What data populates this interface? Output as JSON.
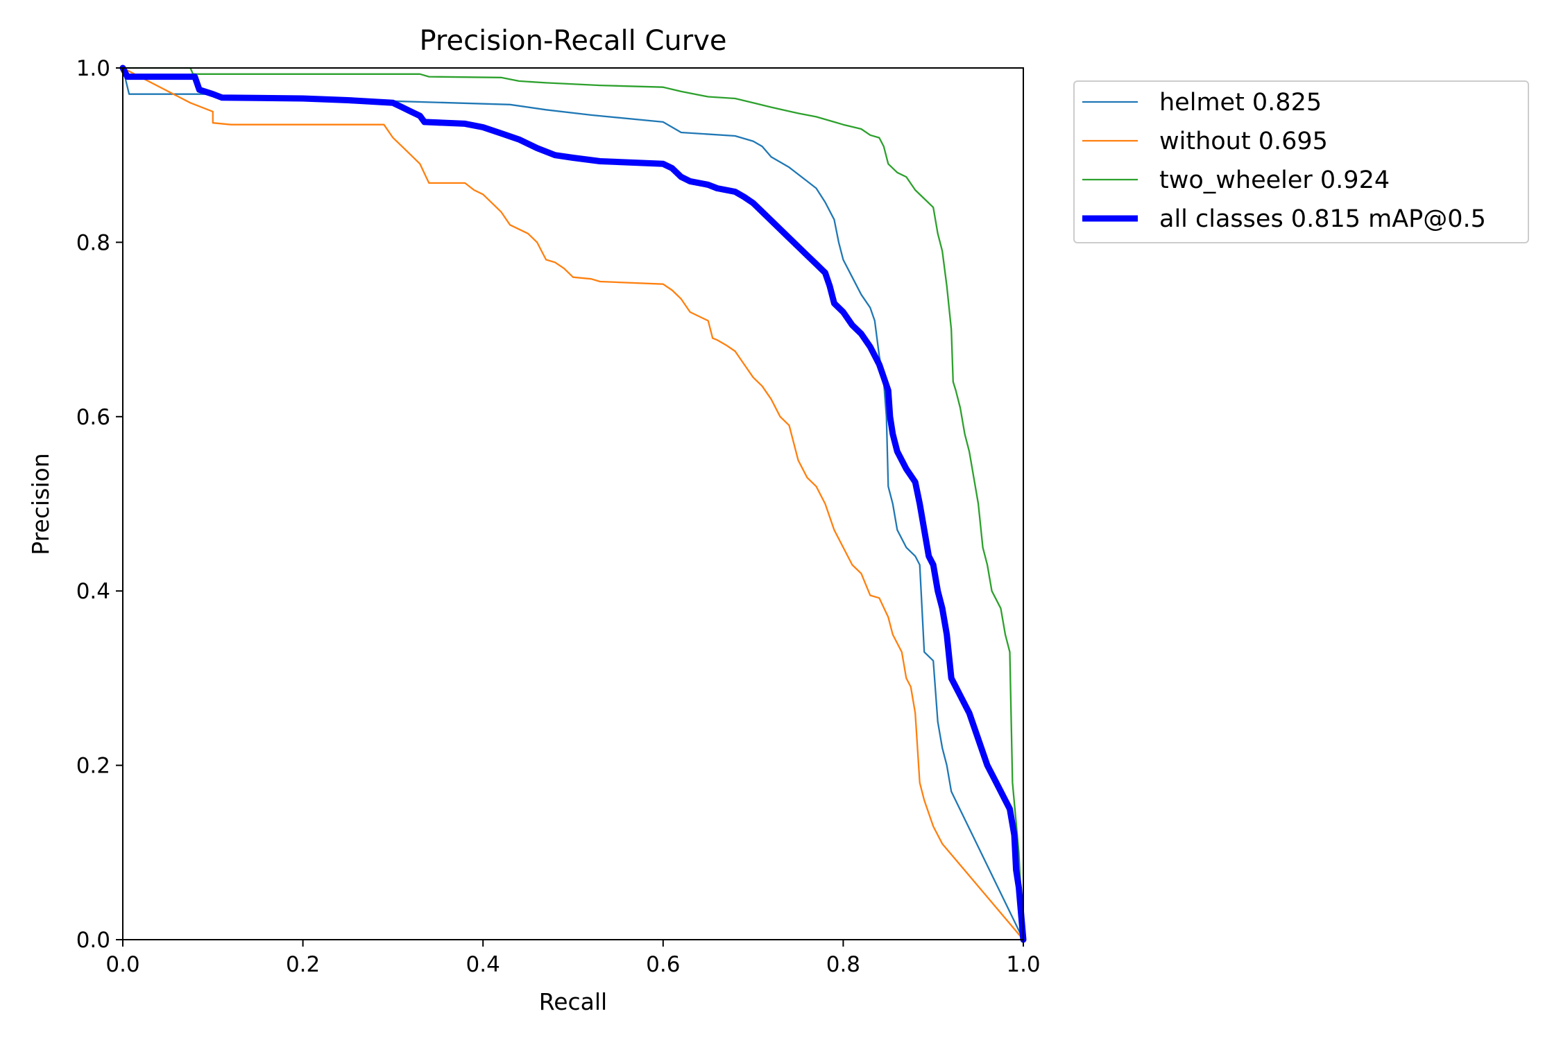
{
  "chart_data": {
    "type": "line",
    "title": "Precision-Recall Curve",
    "xlabel": "Recall",
    "ylabel": "Precision",
    "xlim": [
      0,
      1
    ],
    "ylim": [
      0,
      1
    ],
    "x_ticks": [
      "0.0",
      "0.2",
      "0.4",
      "0.6",
      "0.8",
      "1.0"
    ],
    "y_ticks": [
      "0.0",
      "0.2",
      "0.4",
      "0.6",
      "0.8",
      "1.0"
    ],
    "grid": false,
    "legend_position": "outside-top-right",
    "series": [
      {
        "name": "helmet 0.825",
        "color": "#1f77b4",
        "points": [
          [
            0,
            1.0
          ],
          [
            0.007,
            0.97
          ],
          [
            0.1,
            0.97
          ],
          [
            0.11,
            0.965
          ],
          [
            0.3,
            0.962
          ],
          [
            0.43,
            0.958
          ],
          [
            0.47,
            0.952
          ],
          [
            0.52,
            0.946
          ],
          [
            0.6,
            0.938
          ],
          [
            0.62,
            0.926
          ],
          [
            0.68,
            0.922
          ],
          [
            0.7,
            0.916
          ],
          [
            0.71,
            0.91
          ],
          [
            0.72,
            0.898
          ],
          [
            0.74,
            0.886
          ],
          [
            0.76,
            0.87
          ],
          [
            0.77,
            0.862
          ],
          [
            0.78,
            0.846
          ],
          [
            0.79,
            0.826
          ],
          [
            0.795,
            0.8
          ],
          [
            0.8,
            0.78
          ],
          [
            0.81,
            0.76
          ],
          [
            0.82,
            0.74
          ],
          [
            0.83,
            0.725
          ],
          [
            0.835,
            0.71
          ],
          [
            0.84,
            0.67
          ],
          [
            0.845,
            0.64
          ],
          [
            0.848,
            0.6
          ],
          [
            0.85,
            0.52
          ],
          [
            0.855,
            0.5
          ],
          [
            0.86,
            0.47
          ],
          [
            0.87,
            0.45
          ],
          [
            0.88,
            0.44
          ],
          [
            0.885,
            0.43
          ],
          [
            0.89,
            0.33
          ],
          [
            0.9,
            0.32
          ],
          [
            0.905,
            0.25
          ],
          [
            0.91,
            0.22
          ],
          [
            0.915,
            0.2
          ],
          [
            0.92,
            0.17
          ],
          [
            1.0,
            0.0
          ]
        ]
      },
      {
        "name": "without 0.695",
        "color": "#ff7f0e",
        "points": [
          [
            0,
            1.0
          ],
          [
            0.075,
            0.96
          ],
          [
            0.1,
            0.95
          ],
          [
            0.1,
            0.937
          ],
          [
            0.12,
            0.935
          ],
          [
            0.29,
            0.935
          ],
          [
            0.3,
            0.92
          ],
          [
            0.31,
            0.91
          ],
          [
            0.32,
            0.9
          ],
          [
            0.33,
            0.89
          ],
          [
            0.34,
            0.868
          ],
          [
            0.38,
            0.868
          ],
          [
            0.39,
            0.86
          ],
          [
            0.4,
            0.855
          ],
          [
            0.41,
            0.845
          ],
          [
            0.42,
            0.835
          ],
          [
            0.43,
            0.82
          ],
          [
            0.45,
            0.81
          ],
          [
            0.46,
            0.8
          ],
          [
            0.47,
            0.78
          ],
          [
            0.48,
            0.777
          ],
          [
            0.49,
            0.77
          ],
          [
            0.5,
            0.76
          ],
          [
            0.52,
            0.758
          ],
          [
            0.53,
            0.755
          ],
          [
            0.6,
            0.752
          ],
          [
            0.61,
            0.745
          ],
          [
            0.62,
            0.735
          ],
          [
            0.63,
            0.72
          ],
          [
            0.65,
            0.71
          ],
          [
            0.655,
            0.69
          ],
          [
            0.66,
            0.688
          ],
          [
            0.67,
            0.682
          ],
          [
            0.68,
            0.675
          ],
          [
            0.69,
            0.66
          ],
          [
            0.7,
            0.645
          ],
          [
            0.71,
            0.635
          ],
          [
            0.72,
            0.62
          ],
          [
            0.73,
            0.6
          ],
          [
            0.74,
            0.59
          ],
          [
            0.745,
            0.57
          ],
          [
            0.75,
            0.55
          ],
          [
            0.76,
            0.53
          ],
          [
            0.77,
            0.52
          ],
          [
            0.78,
            0.5
          ],
          [
            0.79,
            0.47
          ],
          [
            0.8,
            0.45
          ],
          [
            0.81,
            0.43
          ],
          [
            0.82,
            0.42
          ],
          [
            0.83,
            0.395
          ],
          [
            0.84,
            0.392
          ],
          [
            0.85,
            0.37
          ],
          [
            0.855,
            0.35
          ],
          [
            0.86,
            0.34
          ],
          [
            0.865,
            0.33
          ],
          [
            0.87,
            0.3
          ],
          [
            0.875,
            0.29
          ],
          [
            0.88,
            0.26
          ],
          [
            0.885,
            0.18
          ],
          [
            0.89,
            0.16
          ],
          [
            0.895,
            0.145
          ],
          [
            0.9,
            0.13
          ],
          [
            0.91,
            0.11
          ],
          [
            1.0,
            0.0
          ]
        ]
      },
      {
        "name": "two_wheeler 0.924",
        "color": "#2ca02c",
        "points": [
          [
            0,
            1.0
          ],
          [
            0.075,
            1.0
          ],
          [
            0.078,
            0.993
          ],
          [
            0.33,
            0.993
          ],
          [
            0.34,
            0.99
          ],
          [
            0.42,
            0.989
          ],
          [
            0.44,
            0.985
          ],
          [
            0.47,
            0.983
          ],
          [
            0.53,
            0.98
          ],
          [
            0.6,
            0.978
          ],
          [
            0.62,
            0.973
          ],
          [
            0.65,
            0.967
          ],
          [
            0.68,
            0.965
          ],
          [
            0.7,
            0.96
          ],
          [
            0.72,
            0.955
          ],
          [
            0.75,
            0.948
          ],
          [
            0.77,
            0.944
          ],
          [
            0.79,
            0.938
          ],
          [
            0.8,
            0.935
          ],
          [
            0.82,
            0.93
          ],
          [
            0.83,
            0.923
          ],
          [
            0.84,
            0.92
          ],
          [
            0.845,
            0.91
          ],
          [
            0.85,
            0.89
          ],
          [
            0.86,
            0.88
          ],
          [
            0.87,
            0.875
          ],
          [
            0.88,
            0.86
          ],
          [
            0.89,
            0.85
          ],
          [
            0.9,
            0.84
          ],
          [
            0.905,
            0.81
          ],
          [
            0.91,
            0.79
          ],
          [
            0.915,
            0.75
          ],
          [
            0.92,
            0.7
          ],
          [
            0.922,
            0.64
          ],
          [
            0.925,
            0.63
          ],
          [
            0.93,
            0.61
          ],
          [
            0.935,
            0.58
          ],
          [
            0.94,
            0.56
          ],
          [
            0.945,
            0.53
          ],
          [
            0.95,
            0.5
          ],
          [
            0.955,
            0.45
          ],
          [
            0.96,
            0.43
          ],
          [
            0.965,
            0.4
          ],
          [
            0.97,
            0.39
          ],
          [
            0.975,
            0.38
          ],
          [
            0.98,
            0.35
          ],
          [
            0.985,
            0.33
          ],
          [
            0.988,
            0.18
          ],
          [
            0.995,
            0.1
          ],
          [
            1.0,
            0.0
          ]
        ]
      },
      {
        "name": "all classes 0.815 mAP@0.5",
        "color": "#0000ff",
        "points": [
          [
            0,
            1.0
          ],
          [
            0.005,
            0.99
          ],
          [
            0.08,
            0.99
          ],
          [
            0.085,
            0.975
          ],
          [
            0.1,
            0.97
          ],
          [
            0.11,
            0.966
          ],
          [
            0.2,
            0.965
          ],
          [
            0.25,
            0.963
          ],
          [
            0.3,
            0.96
          ],
          [
            0.31,
            0.955
          ],
          [
            0.32,
            0.95
          ],
          [
            0.33,
            0.945
          ],
          [
            0.335,
            0.938
          ],
          [
            0.38,
            0.936
          ],
          [
            0.4,
            0.932
          ],
          [
            0.42,
            0.925
          ],
          [
            0.44,
            0.918
          ],
          [
            0.46,
            0.908
          ],
          [
            0.48,
            0.9
          ],
          [
            0.5,
            0.897
          ],
          [
            0.53,
            0.893
          ],
          [
            0.6,
            0.89
          ],
          [
            0.61,
            0.885
          ],
          [
            0.62,
            0.875
          ],
          [
            0.63,
            0.87
          ],
          [
            0.65,
            0.866
          ],
          [
            0.66,
            0.862
          ],
          [
            0.68,
            0.858
          ],
          [
            0.69,
            0.852
          ],
          [
            0.7,
            0.845
          ],
          [
            0.71,
            0.835
          ],
          [
            0.72,
            0.825
          ],
          [
            0.73,
            0.815
          ],
          [
            0.74,
            0.805
          ],
          [
            0.75,
            0.795
          ],
          [
            0.76,
            0.785
          ],
          [
            0.77,
            0.775
          ],
          [
            0.78,
            0.765
          ],
          [
            0.785,
            0.75
          ],
          [
            0.79,
            0.73
          ],
          [
            0.8,
            0.72
          ],
          [
            0.81,
            0.705
          ],
          [
            0.82,
            0.695
          ],
          [
            0.83,
            0.68
          ],
          [
            0.84,
            0.66
          ],
          [
            0.845,
            0.645
          ],
          [
            0.85,
            0.63
          ],
          [
            0.852,
            0.6
          ],
          [
            0.855,
            0.58
          ],
          [
            0.86,
            0.56
          ],
          [
            0.87,
            0.54
          ],
          [
            0.88,
            0.525
          ],
          [
            0.885,
            0.5
          ],
          [
            0.89,
            0.47
          ],
          [
            0.895,
            0.44
          ],
          [
            0.9,
            0.43
          ],
          [
            0.905,
            0.4
          ],
          [
            0.91,
            0.38
          ],
          [
            0.915,
            0.35
          ],
          [
            0.92,
            0.3
          ],
          [
            0.925,
            0.29
          ],
          [
            0.93,
            0.28
          ],
          [
            0.94,
            0.26
          ],
          [
            0.95,
            0.23
          ],
          [
            0.96,
            0.2
          ],
          [
            0.97,
            0.18
          ],
          [
            0.98,
            0.16
          ],
          [
            0.985,
            0.15
          ],
          [
            0.99,
            0.12
          ],
          [
            0.992,
            0.08
          ],
          [
            0.995,
            0.06
          ],
          [
            1.0,
            0.0
          ]
        ]
      }
    ]
  }
}
